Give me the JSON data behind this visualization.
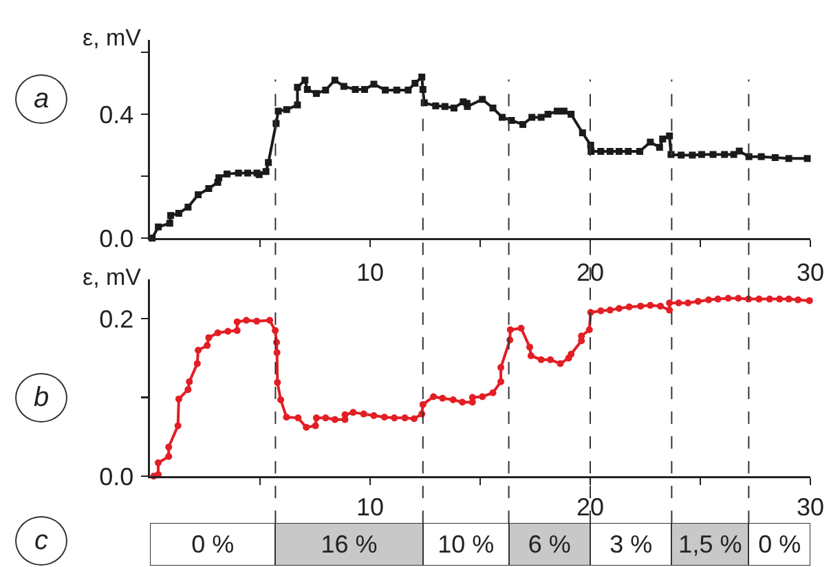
{
  "chart_data": [
    {
      "type": "line",
      "title": "a",
      "ylabel": "ε, mV",
      "marker": "square",
      "xlim": [
        0,
        30
      ],
      "xticks": [
        {
          "value": 5,
          "label": null
        },
        10,
        {
          "value": 15,
          "label": null
        },
        20,
        {
          "value": 25,
          "label": null
        },
        30
      ],
      "ylim": [
        0,
        0.64
      ],
      "yticks": [
        {
          "value": 0,
          "label": "0.0"
        },
        {
          "value": 0.2,
          "label": null
        },
        0.4,
        {
          "value": 0.6,
          "label": null
        }
      ],
      "x": [
        0.1,
        0.38,
        0.9,
        0.94,
        1.31,
        1.73,
        2.19,
        2.67,
        3.08,
        3.13,
        3.5,
        4.02,
        4.44,
        4.86,
        4.96,
        5.27,
        5.38,
        5.73,
        5.83,
        6.21,
        6.7,
        6.7,
        7.04,
        7.15,
        7.56,
        7.98,
        8.4,
        8.81,
        9.33,
        9.75,
        10.17,
        10.69,
        11.21,
        11.73,
        12.04,
        12.35,
        12.4,
        12.46,
        12.98,
        13.4,
        13.81,
        14.23,
        14.4,
        14.42,
        15.1,
        15.58,
        16.0,
        16.42,
        16.94,
        17.35,
        17.77,
        18.08,
        18.5,
        18.81,
        19.13,
        19.65,
        20.02,
        20.04,
        20.48,
        20.9,
        21.31,
        21.73,
        22.25,
        22.73,
        23.15,
        23.29,
        23.6,
        23.67,
        24.13,
        24.64,
        25.06,
        25.58,
        26.1,
        26.52,
        26.77,
        27.21,
        27.77,
        28.4,
        29.02,
        29.86
      ],
      "series": [
        {
          "color": "#1a1a1a",
          "values": [
            0.0,
            0.036,
            0.048,
            0.073,
            0.08,
            0.1,
            0.14,
            0.16,
            0.18,
            0.195,
            0.207,
            0.21,
            0.21,
            0.21,
            0.205,
            0.215,
            0.244,
            0.37,
            0.41,
            0.415,
            0.43,
            0.487,
            0.51,
            0.48,
            0.467,
            0.478,
            0.51,
            0.49,
            0.48,
            0.48,
            0.497,
            0.478,
            0.478,
            0.478,
            0.5,
            0.52,
            0.48,
            0.437,
            0.427,
            0.425,
            0.42,
            0.44,
            0.435,
            0.425,
            0.448,
            0.42,
            0.39,
            0.38,
            0.367,
            0.39,
            0.39,
            0.4,
            0.41,
            0.41,
            0.4,
            0.34,
            0.3,
            0.28,
            0.28,
            0.28,
            0.28,
            0.28,
            0.28,
            0.31,
            0.293,
            0.32,
            0.33,
            0.27,
            0.268,
            0.268,
            0.27,
            0.27,
            0.27,
            0.27,
            0.281,
            0.263,
            0.263,
            0.26,
            0.257,
            0.257
          ]
        }
      ],
      "ref_lines": [
        {
          "axis": "x",
          "value": 5.7,
          "color": "#333333",
          "line_style": "dashed"
        },
        {
          "axis": "x",
          "value": 12.4,
          "color": "#333333",
          "line_style": "dashed"
        },
        {
          "axis": "x",
          "value": 16.3,
          "color": "#333333",
          "line_style": "dashed"
        },
        {
          "axis": "x",
          "value": 20.0,
          "color": "#333333",
          "line_style": "dashed"
        },
        {
          "axis": "x",
          "value": 23.7,
          "color": "#333333",
          "line_style": "dashed"
        },
        {
          "axis": "x",
          "value": 27.2,
          "color": "#333333",
          "line_style": "dashed"
        }
      ]
    },
    {
      "type": "line",
      "title": "b",
      "ylabel": "ε, mV",
      "marker": "circle",
      "tick_labels": "y",
      "xlim": [
        0,
        30
      ],
      "xticks": [
        {
          "value": 5,
          "label": null
        },
        {
          "value": 10,
          "label": null
        },
        {
          "value": 15,
          "label": null
        },
        {
          "value": 20,
          "label": null
        },
        {
          "value": 25,
          "label": null
        },
        {
          "value": 30,
          "label": null
        }
      ],
      "ylim": [
        0,
        0.25
      ],
      "yticks": [
        {
          "value": 0,
          "label": "0.0"
        },
        {
          "value": 0.1,
          "label": null
        },
        0.2
      ],
      "x": [
        0.17,
        0.375,
        0.375,
        0.85,
        0.85,
        1.27,
        1.31,
        1.73,
        1.79,
        2.15,
        2.19,
        2.6,
        2.67,
        3.08,
        3.54,
        3.96,
        3.96,
        4.38,
        4.85,
        5.44,
        5.69,
        5.75,
        5.77,
        5.79,
        5.94,
        6.2,
        6.73,
        7.1,
        7.52,
        7.56,
        7.98,
        8.4,
        8.86,
        8.86,
        9.23,
        9.71,
        10.17,
        10.65,
        11.1,
        11.58,
        12.0,
        12.35,
        12.4,
        12.88,
        13.29,
        13.77,
        14.19,
        14.65,
        14.65,
        15.1,
        15.58,
        15.94,
        15.94,
        16.35,
        16.37,
        16.86,
        17.25,
        17.31,
        17.77,
        18.19,
        18.64,
        19.02,
        19.13,
        19.6,
        19.6,
        19.96,
        20.02,
        20.48,
        20.9,
        21.31,
        21.77,
        22.29,
        22.73,
        23.19,
        23.6,
        23.6,
        24.02,
        24.44,
        24.9,
        25.38,
        25.8,
        26.27,
        26.73,
        27.19,
        27.67,
        28.15,
        28.6,
        29.02,
        29.44,
        29.96
      ],
      "series": [
        {
          "color": "#e31e24",
          "values": [
            0.0,
            0.002,
            0.017,
            0.025,
            0.037,
            0.064,
            0.098,
            0.11,
            0.12,
            0.143,
            0.16,
            0.166,
            0.176,
            0.182,
            0.184,
            0.185,
            0.196,
            0.198,
            0.197,
            0.198,
            0.185,
            0.17,
            0.157,
            0.119,
            0.097,
            0.075,
            0.074,
            0.062,
            0.064,
            0.074,
            0.074,
            0.072,
            0.072,
            0.078,
            0.081,
            0.079,
            0.077,
            0.075,
            0.074,
            0.074,
            0.073,
            0.079,
            0.091,
            0.101,
            0.099,
            0.097,
            0.094,
            0.094,
            0.1,
            0.101,
            0.106,
            0.12,
            0.138,
            0.173,
            0.186,
            0.188,
            0.164,
            0.153,
            0.148,
            0.148,
            0.143,
            0.15,
            0.155,
            0.172,
            0.178,
            0.186,
            0.208,
            0.21,
            0.211,
            0.213,
            0.215,
            0.216,
            0.217,
            0.216,
            0.211,
            0.22,
            0.22,
            0.22,
            0.222,
            0.224,
            0.225,
            0.226,
            0.226,
            0.225,
            0.225,
            0.225,
            0.225,
            0.225,
            0.224,
            0.223
          ]
        }
      ],
      "ref_lines": [
        {
          "axis": "x",
          "value": 5.7,
          "color": "#333333",
          "line_style": "dashed"
        },
        {
          "axis": "x",
          "value": 12.4,
          "color": "#333333",
          "line_style": "dashed"
        },
        {
          "axis": "x",
          "value": 16.3,
          "color": "#333333",
          "line_style": "dashed"
        },
        {
          "axis": "x",
          "value": 20.0,
          "color": "#333333",
          "line_style": "dashed"
        },
        {
          "axis": "x",
          "value": 23.7,
          "color": "#333333",
          "line_style": "dashed"
        },
        {
          "axis": "x",
          "value": 27.2,
          "color": "#333333",
          "line_style": "dashed"
        }
      ]
    },
    {
      "type": "bar",
      "title": "c",
      "orientation": "horizontal",
      "stacked": true,
      "tick_labels": "x",
      "categories": [
        null
      ],
      "xlim": [
        0,
        30
      ],
      "xticks": [
        10,
        20,
        30
      ],
      "series": [
        {
          "name": "0 %",
          "color": "#ffffff",
          "values": [
            5.7
          ]
        },
        {
          "name": "16 %",
          "color": "#c8c8c8",
          "values": [
            6.7
          ]
        },
        {
          "name": "10 %",
          "color": "#ffffff",
          "values": [
            3.9
          ]
        },
        {
          "name": "6 %",
          "color": "#c8c8c8",
          "values": [
            3.7
          ]
        },
        {
          "name": "3 %",
          "color": "#ffffff",
          "values": [
            3.7
          ]
        },
        {
          "name": "1,5 %",
          "color": "#c8c8c8",
          "values": [
            3.5
          ]
        },
        {
          "name": "0 %",
          "color": "#ffffff",
          "values": [
            2.8
          ]
        }
      ]
    }
  ]
}
